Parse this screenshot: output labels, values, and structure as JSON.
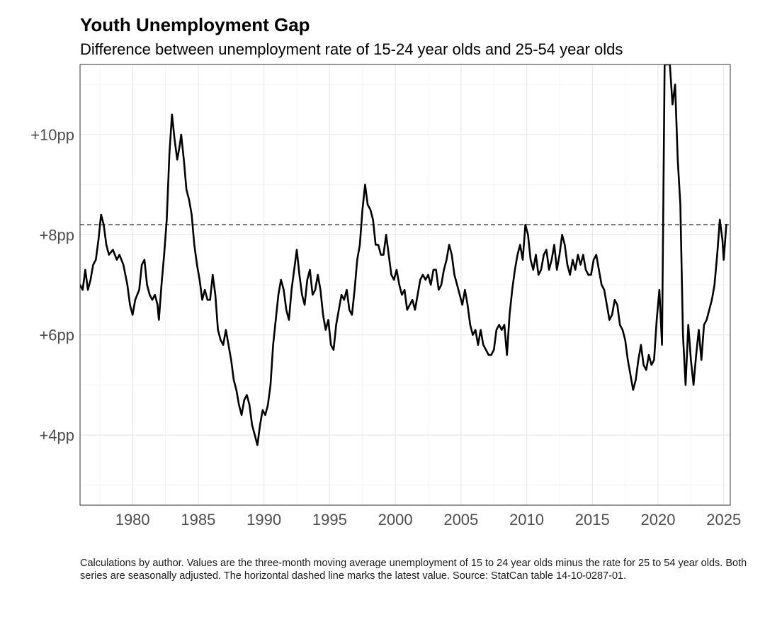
{
  "chart_title": "Youth Unemployment Gap",
  "chart_subtitle": "Difference between unemployment rate of 15-24 year olds and 25-54 year olds",
  "caption": "Calculations by author. Values are the three-month moving average unemployment of 15 to 24 year olds minus the rate for 25 to 54 year olds. Both series are seasonally adjusted. The horizontal dashed line marks the latest value. Source: StatCan table 14-10-0287-01.",
  "colors": {
    "line": "#000000",
    "grid_major": "#ebebeb",
    "grid_minor": "#f5f5f5",
    "axis_text": "#4d4d4d",
    "border": "#333333",
    "reference_line": "#333333"
  },
  "chart_data": {
    "type": "line",
    "title": "Youth Unemployment Gap",
    "subtitle": "Difference between unemployment rate of 15-24 year olds and 25-54 year olds",
    "xlabel": "",
    "ylabel": "",
    "xlim": [
      1976,
      2025.5
    ],
    "ylim": [
      2.6,
      11.4
    ],
    "x_ticks": [
      1980,
      1985,
      1990,
      1995,
      2000,
      2005,
      2010,
      2015,
      2020,
      2025
    ],
    "x_tick_labels": [
      "1980",
      "1985",
      "1990",
      "1995",
      "2000",
      "2005",
      "2010",
      "2015",
      "2020",
      "2025"
    ],
    "y_ticks": [
      4,
      6,
      8,
      10
    ],
    "y_tick_labels": [
      "+4pp",
      "+6pp",
      "+8pp",
      "+10pp"
    ],
    "grid": true,
    "reference_line": {
      "y": 8.2,
      "style": "dashed",
      "label": "latest value"
    },
    "series": [
      {
        "name": "Youth unemployment gap (pp)",
        "points": [
          [
            1976.0,
            7.0
          ],
          [
            1976.2,
            6.9
          ],
          [
            1976.4,
            7.3
          ],
          [
            1976.6,
            6.9
          ],
          [
            1976.8,
            7.1
          ],
          [
            1977.0,
            7.4
          ],
          [
            1977.2,
            7.5
          ],
          [
            1977.4,
            7.9
          ],
          [
            1977.6,
            8.4
          ],
          [
            1977.8,
            8.2
          ],
          [
            1978.0,
            7.8
          ],
          [
            1978.2,
            7.6
          ],
          [
            1978.5,
            7.7
          ],
          [
            1978.8,
            7.5
          ],
          [
            1979.0,
            7.6
          ],
          [
            1979.3,
            7.4
          ],
          [
            1979.6,
            7.0
          ],
          [
            1979.8,
            6.6
          ],
          [
            1980.0,
            6.4
          ],
          [
            1980.2,
            6.7
          ],
          [
            1980.5,
            6.9
          ],
          [
            1980.7,
            7.4
          ],
          [
            1980.9,
            7.5
          ],
          [
            1981.1,
            7.0
          ],
          [
            1981.3,
            6.8
          ],
          [
            1981.5,
            6.7
          ],
          [
            1981.7,
            6.8
          ],
          [
            1981.9,
            6.6
          ],
          [
            1982.0,
            6.3
          ],
          [
            1982.2,
            7.0
          ],
          [
            1982.4,
            7.6
          ],
          [
            1982.6,
            8.3
          ],
          [
            1982.8,
            9.6
          ],
          [
            1983.0,
            10.4
          ],
          [
            1983.2,
            9.9
          ],
          [
            1983.4,
            9.5
          ],
          [
            1983.6,
            9.8
          ],
          [
            1983.7,
            10.0
          ],
          [
            1983.9,
            9.5
          ],
          [
            1984.1,
            8.9
          ],
          [
            1984.3,
            8.7
          ],
          [
            1984.5,
            8.4
          ],
          [
            1984.7,
            7.8
          ],
          [
            1984.9,
            7.4
          ],
          [
            1985.1,
            7.1
          ],
          [
            1985.3,
            6.7
          ],
          [
            1985.5,
            6.9
          ],
          [
            1985.7,
            6.7
          ],
          [
            1985.9,
            6.7
          ],
          [
            1986.1,
            7.2
          ],
          [
            1986.3,
            6.8
          ],
          [
            1986.5,
            6.1
          ],
          [
            1986.7,
            5.9
          ],
          [
            1986.9,
            5.8
          ],
          [
            1987.1,
            6.1
          ],
          [
            1987.3,
            5.8
          ],
          [
            1987.5,
            5.5
          ],
          [
            1987.7,
            5.1
          ],
          [
            1987.9,
            4.9
          ],
          [
            1988.1,
            4.6
          ],
          [
            1988.3,
            4.4
          ],
          [
            1988.5,
            4.7
          ],
          [
            1988.7,
            4.8
          ],
          [
            1988.9,
            4.6
          ],
          [
            1989.1,
            4.2
          ],
          [
            1989.3,
            4.0
          ],
          [
            1989.5,
            3.8
          ],
          [
            1989.7,
            4.2
          ],
          [
            1989.9,
            4.5
          ],
          [
            1990.1,
            4.4
          ],
          [
            1990.3,
            4.6
          ],
          [
            1990.5,
            5.0
          ],
          [
            1990.7,
            5.8
          ],
          [
            1990.9,
            6.3
          ],
          [
            1991.1,
            6.8
          ],
          [
            1991.3,
            7.1
          ],
          [
            1991.5,
            6.9
          ],
          [
            1991.7,
            6.5
          ],
          [
            1991.9,
            6.3
          ],
          [
            1992.1,
            6.9
          ],
          [
            1992.3,
            7.3
          ],
          [
            1992.5,
            7.7
          ],
          [
            1992.7,
            7.2
          ],
          [
            1992.9,
            6.8
          ],
          [
            1993.1,
            6.6
          ],
          [
            1993.3,
            7.1
          ],
          [
            1993.5,
            7.3
          ],
          [
            1993.7,
            6.8
          ],
          [
            1993.9,
            6.9
          ],
          [
            1994.1,
            7.2
          ],
          [
            1994.3,
            6.9
          ],
          [
            1994.5,
            6.4
          ],
          [
            1994.7,
            6.1
          ],
          [
            1994.9,
            6.3
          ],
          [
            1995.1,
            5.8
          ],
          [
            1995.3,
            5.7
          ],
          [
            1995.5,
            6.2
          ],
          [
            1995.7,
            6.5
          ],
          [
            1995.9,
            6.8
          ],
          [
            1996.1,
            6.7
          ],
          [
            1996.3,
            6.9
          ],
          [
            1996.5,
            6.5
          ],
          [
            1996.7,
            6.4
          ],
          [
            1996.9,
            6.9
          ],
          [
            1997.1,
            7.5
          ],
          [
            1997.3,
            7.8
          ],
          [
            1997.5,
            8.5
          ],
          [
            1997.7,
            9.0
          ],
          [
            1997.9,
            8.6
          ],
          [
            1998.1,
            8.5
          ],
          [
            1998.3,
            8.3
          ],
          [
            1998.5,
            7.8
          ],
          [
            1998.7,
            7.8
          ],
          [
            1998.9,
            7.6
          ],
          [
            1999.1,
            7.6
          ],
          [
            1999.3,
            8.0
          ],
          [
            1999.5,
            7.6
          ],
          [
            1999.7,
            7.2
          ],
          [
            1999.9,
            7.1
          ],
          [
            2000.1,
            7.3
          ],
          [
            2000.3,
            7.0
          ],
          [
            2000.5,
            6.8
          ],
          [
            2000.7,
            6.9
          ],
          [
            2000.9,
            6.5
          ],
          [
            2001.1,
            6.6
          ],
          [
            2001.3,
            6.7
          ],
          [
            2001.5,
            6.5
          ],
          [
            2001.7,
            6.8
          ],
          [
            2001.9,
            7.1
          ],
          [
            2002.1,
            7.2
          ],
          [
            2002.3,
            7.1
          ],
          [
            2002.5,
            7.2
          ],
          [
            2002.7,
            7.0
          ],
          [
            2002.9,
            7.3
          ],
          [
            2003.1,
            7.3
          ],
          [
            2003.3,
            6.9
          ],
          [
            2003.5,
            7.0
          ],
          [
            2003.7,
            7.3
          ],
          [
            2003.9,
            7.5
          ],
          [
            2004.1,
            7.8
          ],
          [
            2004.3,
            7.6
          ],
          [
            2004.5,
            7.2
          ],
          [
            2004.7,
            7.0
          ],
          [
            2004.9,
            6.8
          ],
          [
            2005.1,
            6.6
          ],
          [
            2005.3,
            6.9
          ],
          [
            2005.5,
            6.6
          ],
          [
            2005.7,
            6.2
          ],
          [
            2005.9,
            6.0
          ],
          [
            2006.1,
            6.1
          ],
          [
            2006.3,
            5.8
          ],
          [
            2006.5,
            6.1
          ],
          [
            2006.7,
            5.8
          ],
          [
            2006.9,
            5.7
          ],
          [
            2007.1,
            5.6
          ],
          [
            2007.3,
            5.6
          ],
          [
            2007.5,
            5.7
          ],
          [
            2007.7,
            6.1
          ],
          [
            2007.9,
            6.2
          ],
          [
            2008.1,
            6.1
          ],
          [
            2008.3,
            6.2
          ],
          [
            2008.5,
            5.6
          ],
          [
            2008.7,
            6.4
          ],
          [
            2008.9,
            6.9
          ],
          [
            2009.1,
            7.3
          ],
          [
            2009.3,
            7.6
          ],
          [
            2009.5,
            7.8
          ],
          [
            2009.7,
            7.5
          ],
          [
            2009.9,
            8.2
          ],
          [
            2010.1,
            8.0
          ],
          [
            2010.3,
            7.5
          ],
          [
            2010.5,
            7.3
          ],
          [
            2010.7,
            7.6
          ],
          [
            2010.9,
            7.2
          ],
          [
            2011.1,
            7.3
          ],
          [
            2011.3,
            7.6
          ],
          [
            2011.5,
            7.7
          ],
          [
            2011.7,
            7.3
          ],
          [
            2011.9,
            7.5
          ],
          [
            2012.1,
            7.8
          ],
          [
            2012.3,
            7.3
          ],
          [
            2012.5,
            7.6
          ],
          [
            2012.7,
            8.0
          ],
          [
            2012.9,
            7.8
          ],
          [
            2013.1,
            7.4
          ],
          [
            2013.3,
            7.2
          ],
          [
            2013.5,
            7.5
          ],
          [
            2013.7,
            7.3
          ],
          [
            2013.9,
            7.6
          ],
          [
            2014.1,
            7.4
          ],
          [
            2014.3,
            7.6
          ],
          [
            2014.5,
            7.3
          ],
          [
            2014.7,
            7.2
          ],
          [
            2014.9,
            7.2
          ],
          [
            2015.1,
            7.5
          ],
          [
            2015.3,
            7.6
          ],
          [
            2015.5,
            7.3
          ],
          [
            2015.7,
            7.0
          ],
          [
            2015.9,
            6.9
          ],
          [
            2016.1,
            6.6
          ],
          [
            2016.3,
            6.3
          ],
          [
            2016.5,
            6.4
          ],
          [
            2016.7,
            6.7
          ],
          [
            2016.9,
            6.6
          ],
          [
            2017.1,
            6.2
          ],
          [
            2017.3,
            6.1
          ],
          [
            2017.5,
            5.9
          ],
          [
            2017.7,
            5.5
          ],
          [
            2017.9,
            5.2
          ],
          [
            2018.1,
            4.9
          ],
          [
            2018.3,
            5.1
          ],
          [
            2018.5,
            5.5
          ],
          [
            2018.7,
            5.8
          ],
          [
            2018.9,
            5.4
          ],
          [
            2019.1,
            5.3
          ],
          [
            2019.3,
            5.6
          ],
          [
            2019.5,
            5.4
          ],
          [
            2019.7,
            5.5
          ],
          [
            2019.9,
            6.3
          ],
          [
            2020.1,
            6.9
          ],
          [
            2020.3,
            5.8
          ],
          [
            2020.5,
            11.4
          ],
          [
            2020.7,
            11.4
          ],
          [
            2020.9,
            11.4
          ],
          [
            2021.1,
            10.6
          ],
          [
            2021.3,
            11.0
          ],
          [
            2021.5,
            9.5
          ],
          [
            2021.7,
            8.6
          ],
          [
            2021.9,
            6.0
          ],
          [
            2022.1,
            5.0
          ],
          [
            2022.3,
            6.2
          ],
          [
            2022.5,
            5.5
          ],
          [
            2022.7,
            5.0
          ],
          [
            2022.9,
            5.6
          ],
          [
            2023.1,
            6.1
          ],
          [
            2023.3,
            5.5
          ],
          [
            2023.5,
            6.2
          ],
          [
            2023.7,
            6.3
          ],
          [
            2023.9,
            6.5
          ],
          [
            2024.1,
            6.7
          ],
          [
            2024.3,
            7.0
          ],
          [
            2024.5,
            7.6
          ],
          [
            2024.7,
            8.3
          ],
          [
            2024.9,
            7.9
          ],
          [
            2025.0,
            7.5
          ],
          [
            2025.2,
            8.2
          ]
        ]
      }
    ]
  }
}
